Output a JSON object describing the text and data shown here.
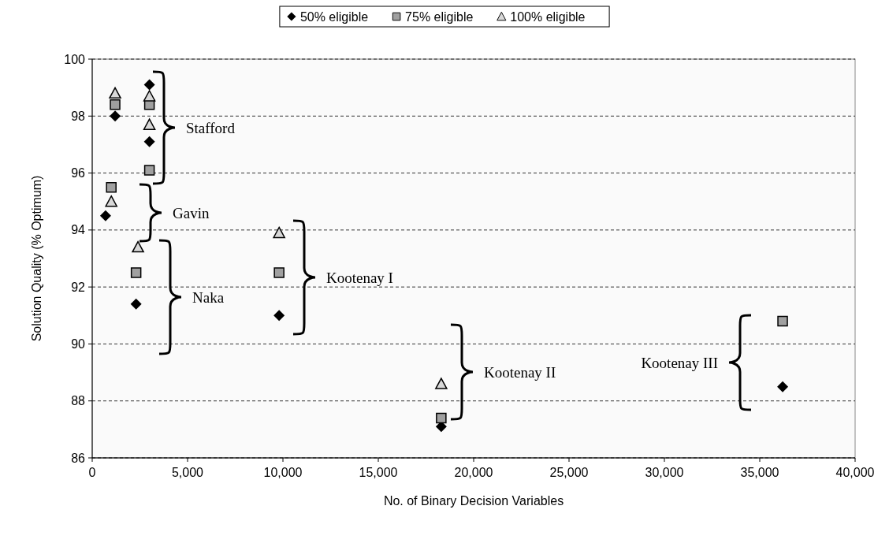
{
  "chart_data": {
    "type": "scatter",
    "xlabel": "No. of Binary Decision Variables",
    "ylabel": "Solution Quality (% Optimum)",
    "xlim": [
      0,
      40000
    ],
    "ylim": [
      86,
      100
    ],
    "xticks": [
      {
        "value": 0,
        "label": "0"
      },
      {
        "value": 5000,
        "label": "5,000"
      },
      {
        "value": 10000,
        "label": "10,000"
      },
      {
        "value": 15000,
        "label": "15,000"
      },
      {
        "value": 20000,
        "label": "20,000"
      },
      {
        "value": 25000,
        "label": "25,000"
      },
      {
        "value": 30000,
        "label": "30,000"
      },
      {
        "value": 35000,
        "label": "35,000"
      },
      {
        "value": 40000,
        "label": "40,000"
      }
    ],
    "yticks": [
      86,
      88,
      90,
      92,
      94,
      96,
      98,
      100
    ],
    "grid": "y",
    "legend": "top",
    "series": [
      {
        "name": "50% eligible",
        "color": "#000000",
        "marker": "diamond",
        "x": [
          1200,
          3000,
          3000,
          700,
          2300,
          9800,
          18300,
          36200
        ],
        "values": [
          98.0,
          99.1,
          97.1,
          94.5,
          91.4,
          91.0,
          87.1,
          88.5
        ]
      },
      {
        "name": "75% eligible",
        "color": "#a0a0a0",
        "marker": "square",
        "x": [
          1200,
          3000,
          3000,
          1000,
          2300,
          9800,
          18300,
          36200
        ],
        "values": [
          98.4,
          98.4,
          96.1,
          95.5,
          92.5,
          92.5,
          87.4,
          90.8
        ]
      },
      {
        "name": "100% eligible",
        "color": "#d8d8d8",
        "marker": "triangle",
        "x": [
          1200,
          3000,
          3000,
          1000,
          2400,
          9800,
          18300
        ],
        "values": [
          98.8,
          98.7,
          97.7,
          95.0,
          93.4,
          93.9,
          88.6
        ]
      }
    ],
    "annotations": [
      "Stafford",
      "Gavin",
      "Naka",
      "Kootenay I",
      "Kootenay II",
      "Kootenay III"
    ]
  }
}
